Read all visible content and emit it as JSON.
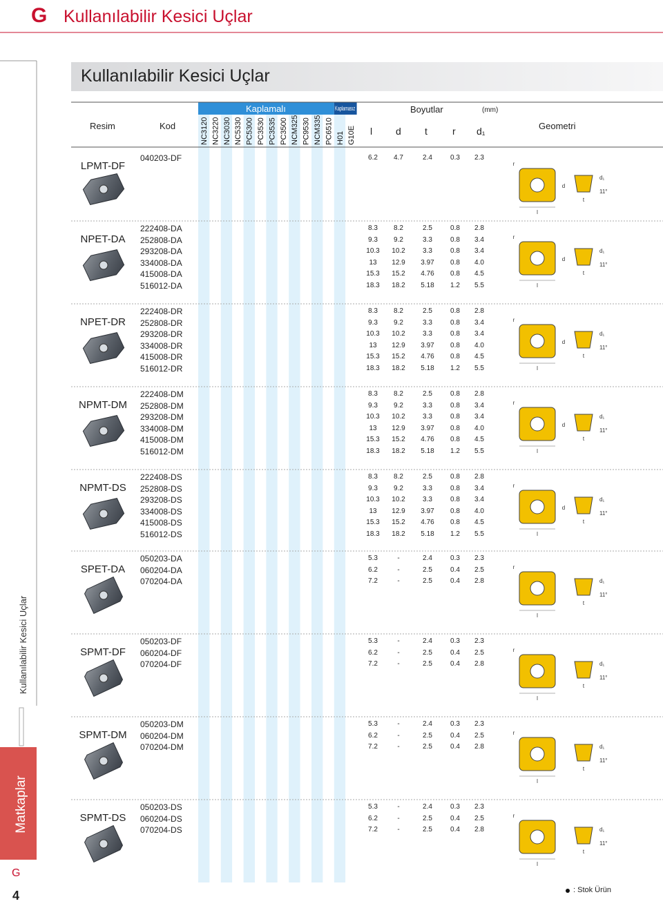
{
  "header": {
    "letter": "G",
    "title": "Kullanılabilir Kesici Uçlar"
  },
  "section_title": "Kullanılabilir Kesici Uçlar",
  "table": {
    "resim": "Resim",
    "kod": "Kod",
    "kaplamali": "Kaplamalı",
    "kaplamasiz": "Kaplamasız",
    "coated_grades": [
      "NC3120",
      "NC3220",
      "NC3030",
      "NC5330",
      "PC5300",
      "PC3530",
      "PC3535",
      "PC3500",
      "NCM325",
      "PC9530",
      "NCM335",
      "PC6510"
    ],
    "uncoated_grades": [
      "H01",
      "G10E"
    ],
    "boyutlar": "Boyutlar",
    "unit": "(mm)",
    "dims": [
      "l",
      "d",
      "t",
      "r",
      "d₁"
    ],
    "geometri": "Geometri"
  },
  "geometry_labels": {
    "r": "r",
    "l": "l",
    "d": "d",
    "d1": "d₁",
    "t": "t",
    "angle": "11°"
  },
  "groups": [
    {
      "name": "LPMT-DF",
      "rows": [
        [
          "040203-DF",
          "6.2",
          "4.7",
          "2.4",
          "0.3",
          "2.3"
        ]
      ]
    },
    {
      "name": "NPET-DA",
      "rows": [
        [
          "222408-DA",
          "8.3",
          "8.2",
          "2.5",
          "0.8",
          "2.8"
        ],
        [
          "252808-DA",
          "9.3",
          "9.2",
          "3.3",
          "0.8",
          "3.4"
        ],
        [
          "293208-DA",
          "10.3",
          "10.2",
          "3.3",
          "0.8",
          "3.4"
        ],
        [
          "334008-DA",
          "13",
          "12.9",
          "3.97",
          "0.8",
          "4.0"
        ],
        [
          "415008-DA",
          "15.3",
          "15.2",
          "4.76",
          "0.8",
          "4.5"
        ],
        [
          "516012-DA",
          "18.3",
          "18.2",
          "5.18",
          "1.2",
          "5.5"
        ]
      ]
    },
    {
      "name": "NPET-DR",
      "rows": [
        [
          "222408-DR",
          "8.3",
          "8.2",
          "2.5",
          "0.8",
          "2.8"
        ],
        [
          "252808-DR",
          "9.3",
          "9.2",
          "3.3",
          "0.8",
          "3.4"
        ],
        [
          "293208-DR",
          "10.3",
          "10.2",
          "3.3",
          "0.8",
          "3.4"
        ],
        [
          "334008-DR",
          "13",
          "12.9",
          "3.97",
          "0.8",
          "4.0"
        ],
        [
          "415008-DR",
          "15.3",
          "15.2",
          "4.76",
          "0.8",
          "4.5"
        ],
        [
          "516012-DR",
          "18.3",
          "18.2",
          "5.18",
          "1.2",
          "5.5"
        ]
      ]
    },
    {
      "name": "NPMT-DM",
      "rows": [
        [
          "222408-DM",
          "8.3",
          "8.2",
          "2.5",
          "0.8",
          "2.8"
        ],
        [
          "252808-DM",
          "9.3",
          "9.2",
          "3.3",
          "0.8",
          "3.4"
        ],
        [
          "293208-DM",
          "10.3",
          "10.2",
          "3.3",
          "0.8",
          "3.4"
        ],
        [
          "334008-DM",
          "13",
          "12.9",
          "3.97",
          "0.8",
          "4.0"
        ],
        [
          "415008-DM",
          "15.3",
          "15.2",
          "4.76",
          "0.8",
          "4.5"
        ],
        [
          "516012-DM",
          "18.3",
          "18.2",
          "5.18",
          "1.2",
          "5.5"
        ]
      ]
    },
    {
      "name": "NPMT-DS",
      "rows": [
        [
          "222408-DS",
          "8.3",
          "8.2",
          "2.5",
          "0.8",
          "2.8"
        ],
        [
          "252808-DS",
          "9.3",
          "9.2",
          "3.3",
          "0.8",
          "3.4"
        ],
        [
          "293208-DS",
          "10.3",
          "10.2",
          "3.3",
          "0.8",
          "3.4"
        ],
        [
          "334008-DS",
          "13",
          "12.9",
          "3.97",
          "0.8",
          "4.0"
        ],
        [
          "415008-DS",
          "15.3",
          "15.2",
          "4.76",
          "0.8",
          "4.5"
        ],
        [
          "516012-DS",
          "18.3",
          "18.2",
          "5.18",
          "1.2",
          "5.5"
        ]
      ]
    },
    {
      "name": "SPET-DA",
      "rows": [
        [
          "050203-DA",
          "5.3",
          "-",
          "2.4",
          "0.3",
          "2.3"
        ],
        [
          "060204-DA",
          "6.2",
          "-",
          "2.5",
          "0.4",
          "2.5"
        ],
        [
          "070204-DA",
          "7.2",
          "-",
          "2.5",
          "0.4",
          "2.8"
        ]
      ]
    },
    {
      "name": "SPMT-DF",
      "rows": [
        [
          "050203-DF",
          "5.3",
          "-",
          "2.4",
          "0.3",
          "2.3"
        ],
        [
          "060204-DF",
          "6.2",
          "-",
          "2.5",
          "0.4",
          "2.5"
        ],
        [
          "070204-DF",
          "7.2",
          "-",
          "2.5",
          "0.4",
          "2.8"
        ]
      ]
    },
    {
      "name": "SPMT-DM",
      "rows": [
        [
          "050203-DM",
          "5.3",
          "-",
          "2.4",
          "0.3",
          "2.3"
        ],
        [
          "060204-DM",
          "6.2",
          "-",
          "2.5",
          "0.4",
          "2.5"
        ],
        [
          "070204-DM",
          "7.2",
          "-",
          "2.5",
          "0.4",
          "2.8"
        ]
      ]
    },
    {
      "name": "SPMT-DS",
      "rows": [
        [
          "050203-DS",
          "5.3",
          "-",
          "2.4",
          "0.3",
          "2.3"
        ],
        [
          "060204-DS",
          "6.2",
          "-",
          "2.5",
          "0.4",
          "2.5"
        ],
        [
          "070204-DS",
          "7.2",
          "-",
          "2.5",
          "0.4",
          "2.8"
        ]
      ]
    }
  ],
  "side": {
    "vertical_label": "Kullanılabilir Kesici Uçlar",
    "tab": "Matkaplar",
    "letter": "G",
    "page": "4"
  },
  "legend": ": Stok Ürün"
}
